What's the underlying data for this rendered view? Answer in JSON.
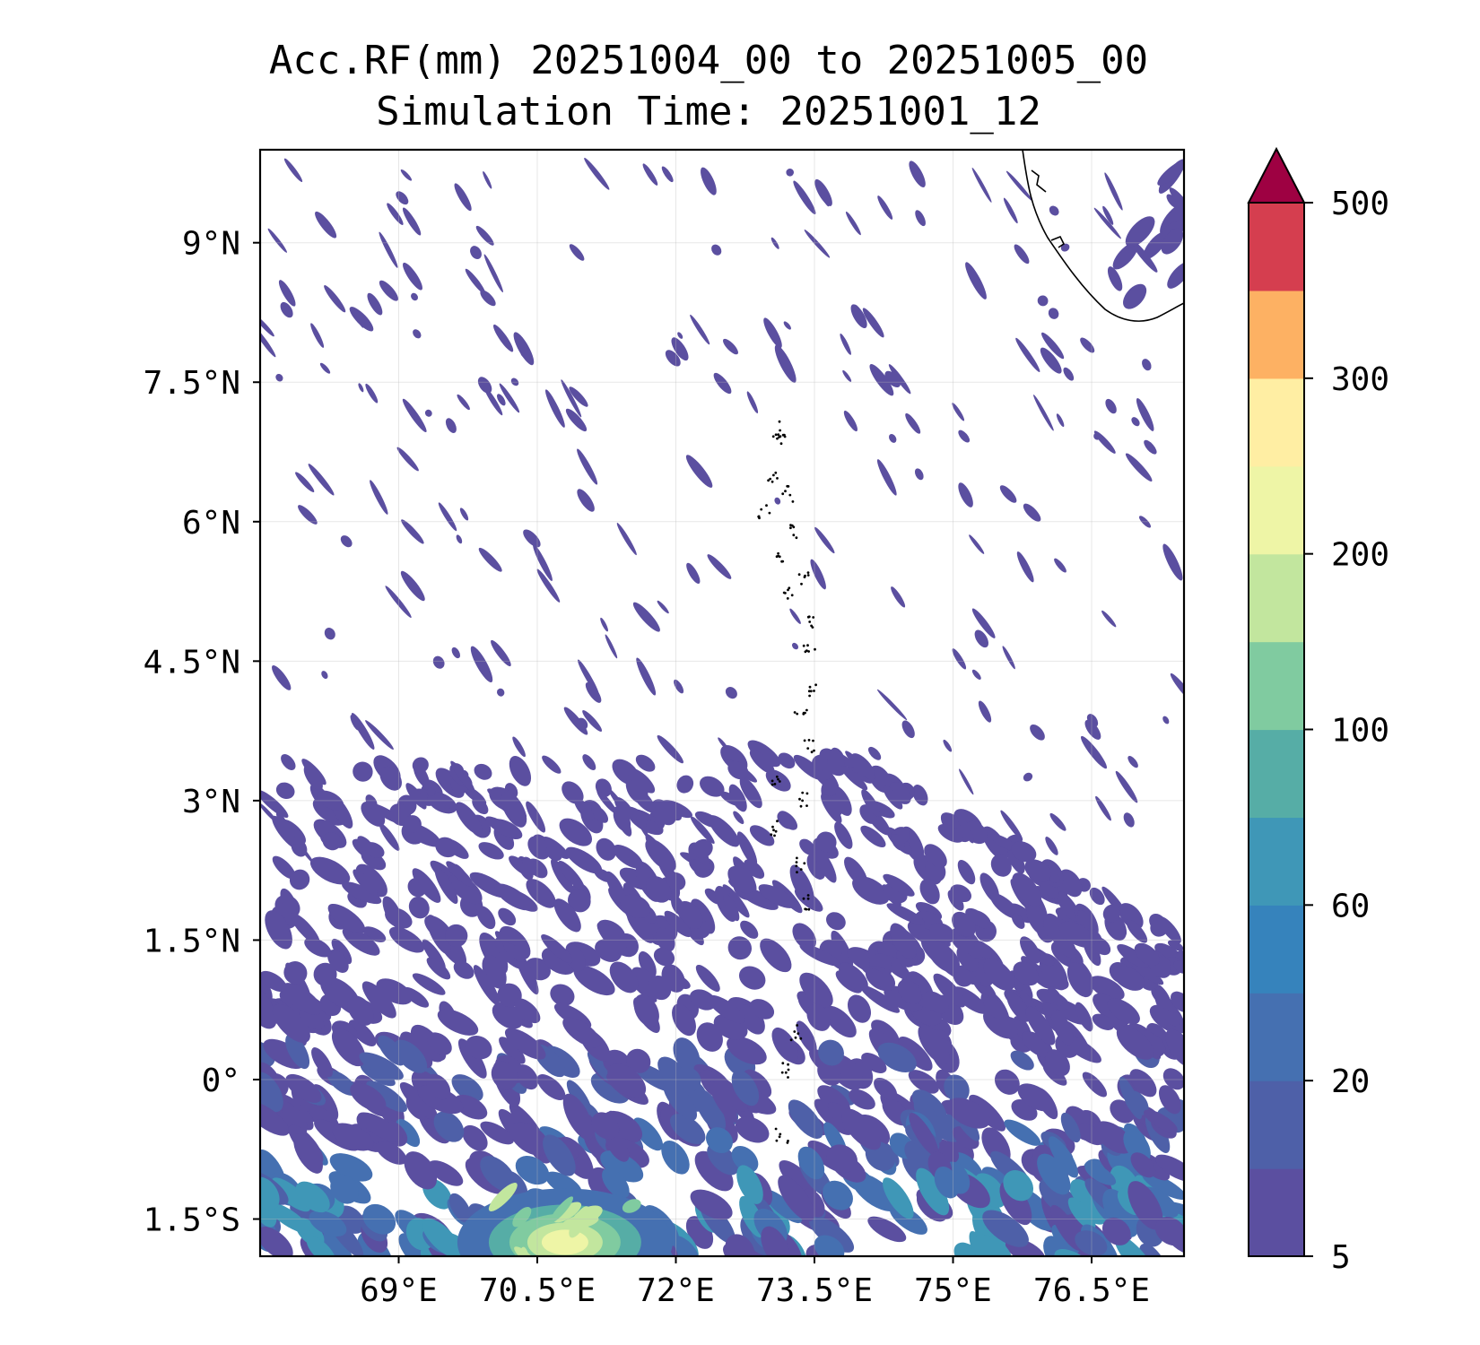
{
  "title": {
    "line1": "Acc.RF(mm) 20251004_00 to 20251005_00",
    "line2": "Simulation Time: 20251001_12"
  },
  "map": {
    "lon_range": [
      67.5,
      77.5
    ],
    "lat_range": [
      -1.9,
      10.0
    ],
    "lon_ticks": [
      69,
      70.5,
      72,
      73.5,
      75,
      76.5
    ],
    "lon_tick_labels": [
      "69°E",
      "70.5°E",
      "72°E",
      "73.5°E",
      "75°E",
      "76.5°E"
    ],
    "lat_ticks": [
      9,
      7.5,
      6,
      4.5,
      3,
      1.5,
      0,
      -1.5
    ],
    "lat_tick_labels": [
      "9°N",
      "7.5°N",
      "6°N",
      "4.5°N",
      "3°N",
      "1.5°N",
      "0°",
      "1.5°S"
    ],
    "grid": true,
    "features": [
      "Sri Lanka coastline (top-right)",
      "Maldives atolls (dotted, ~73.3°E)"
    ]
  },
  "colorbar": {
    "placement": "right",
    "extend": "max",
    "tick_labels": [
      "5",
      "20",
      "60",
      "100",
      "200",
      "300",
      "500"
    ],
    "colors": [
      "#5b4fa0",
      "#4e60a8",
      "#4570b1",
      "#3683bc",
      "#3f97b7",
      "#56ada6",
      "#80cba0",
      "#c2e69e",
      "#eef5a6",
      "#ffeea3",
      "#fdb163",
      "#d53e4f",
      "#9e0142"
    ]
  },
  "chart_data": {
    "type": "heatmap",
    "title": "Acc.RF(mm) 20251004_00 to 20251005_00 / Simulation Time: 20251001_12",
    "xlabel": "",
    "ylabel": "",
    "levels": [
      5,
      20,
      60,
      100,
      200,
      300,
      500
    ],
    "regions": [
      {
        "lon": [
          67.5,
          77.5
        ],
        "lat": [
          -1.9,
          0.5
        ],
        "value_range": [
          5,
          60
        ]
      },
      {
        "lon": [
          70.0,
          71.2
        ],
        "lat": [
          -1.9,
          -1.2
        ],
        "value_range": [
          100,
          250
        ]
      },
      {
        "lon": [
          67.5,
          74.5
        ],
        "lat": [
          0.5,
          3.0
        ],
        "value_range": [
          5,
          20
        ]
      },
      {
        "lon": [
          67.5,
          77.5
        ],
        "lat": [
          3.0,
          10.0
        ],
        "value_range": [
          5,
          20
        ],
        "note": "scattered streaks"
      }
    ]
  }
}
